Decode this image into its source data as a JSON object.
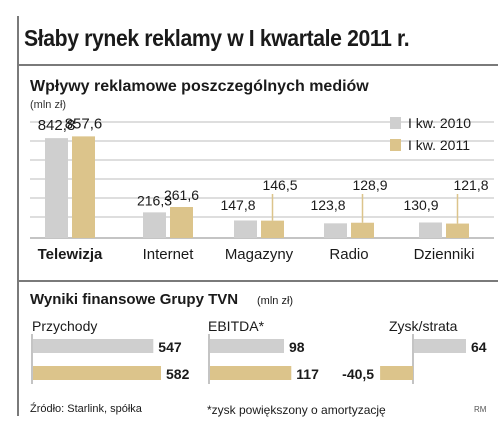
{
  "title": "Słaby rynek reklamy w I kwartale 2011 r.",
  "colors": {
    "series_2010": "#cfcfcf",
    "series_2011": "#dcc48b",
    "frame": "#7a7a7a"
  },
  "chart_data": [
    {
      "type": "bar",
      "title": "Wpływy reklamowe poszczególnych mediów",
      "ylabel": "(mln zł)",
      "categories": [
        "Telewizja",
        "Internet",
        "Magazyny",
        "Radio",
        "Dzienniki"
      ],
      "series": [
        {
          "name": "I kw. 2010",
          "values": [
            842.8,
            216.3,
            147.8,
            123.8,
            130.9
          ],
          "labels": [
            "842,8",
            "216,3",
            "147,8",
            "123,8",
            "130,9"
          ]
        },
        {
          "name": "I kw. 2011",
          "values": [
            857.6,
            261.6,
            146.5,
            128.9,
            121.8
          ],
          "labels": [
            "857,6",
            "261,6",
            "146,5",
            "128,9",
            "121,8"
          ]
        }
      ],
      "ylim": [
        0,
        900
      ],
      "grid": true,
      "legend": "top-right"
    },
    {
      "type": "bar",
      "orientation": "horizontal",
      "title": "Wyniki finansowe Grupy TVN",
      "unit": "(mln zł)",
      "groups": [
        {
          "name": "Przychody",
          "values": [
            547,
            582
          ],
          "labels": [
            "547",
            "582"
          ]
        },
        {
          "name": "EBITDA*",
          "values": [
            98,
            117
          ],
          "labels": [
            "98",
            "117"
          ]
        },
        {
          "name": "Zysk/strata",
          "values": [
            64,
            -40.5
          ],
          "labels": [
            "64",
            "-40,5"
          ]
        }
      ],
      "series_order": [
        "I kw. 2010",
        "I kw. 2011"
      ]
    }
  ],
  "footer": {
    "source": "Źródło: Starlink, spółka",
    "footnote": "*zysk powiększony o amortyzację",
    "credit": "RM"
  }
}
